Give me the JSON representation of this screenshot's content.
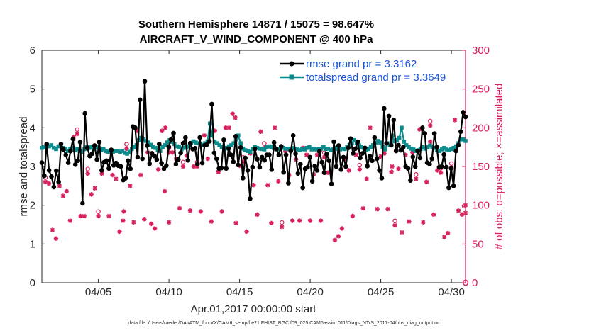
{
  "chart_data": {
    "type": "line",
    "title_line1": "Southern Hemisphere 14871 / 15075 = 98.647%",
    "title_line2": "AIRCRAFT_V_WIND_COMPONENT @ 400 hPa",
    "ylabel_left": "rmse and totalspread",
    "ylabel_right": "# of obs: o=possible; ×=assimilated",
    "xlabel": "Apr.01,2017 00:00:00 start",
    "footer": "data file: /Users/raeder/DAI/ATM_forcXX/CAM6_setup/f.e21.FHIST_BGC.f09_025.CAM6assim.011/Diags_NTrS_2017-04/obs_diag_output.nc",
    "xlim": [
      1,
      31
    ],
    "ylim_left": [
      0,
      6
    ],
    "ylim_right": [
      0,
      300
    ],
    "left_ticks": [
      "0",
      "1",
      "2",
      "3",
      "4",
      "5",
      "6"
    ],
    "right_ticks": [
      "0",
      "50",
      "100",
      "150",
      "200",
      "250",
      "300"
    ],
    "x_tick_days": [
      5,
      10,
      15,
      20,
      25,
      30
    ],
    "x_tick_labels": [
      "04/05",
      "04/10",
      "04/15",
      "04/20",
      "04/25",
      "04/30"
    ],
    "colors": {
      "rmse": "#000000",
      "spread": "#0a8c8c",
      "obs": "#d6205a",
      "legend_text": "#1a55d6",
      "right_axis": "#d6205a"
    },
    "series": [
      {
        "name": "rmse grand pr = 3.3162",
        "values": [
          3.1,
          2.76,
          3.58,
          2.9,
          2.74,
          2.47,
          2.89,
          2.6,
          3.58,
          3.44,
          3.3,
          3.1,
          3.4,
          3.71,
          3.05,
          3.15,
          3.63,
          2.05,
          4.37,
          3.48,
          3.27,
          3.33,
          3.54,
          3.18,
          3.63,
          2.9,
          3.11,
          3.15,
          2.95,
          3.43,
          3.03,
          3.09,
          3.02,
          3.0,
          2.65,
          2.7,
          3.15,
          2.94,
          4.03,
          4.0,
          3.24,
          4.72,
          3.2,
          5.2,
          3.54,
          3.07,
          3.34,
          3.27,
          3.18,
          3.58,
          3.08,
          2.94,
          3.02,
          3.51,
          3.7,
          3.86,
          3.06,
          3.18,
          3.35,
          3.6,
          3.75,
          3.16,
          3.6,
          3.45,
          3.47,
          3.06,
          3.75,
          3.09,
          3.55,
          3.57,
          3.65,
          4.61,
          3.35,
          3.2,
          2.95,
          2.96,
          3.69,
          2.95,
          3.46,
          3.3,
          3.12,
          3.78,
          3.04,
          3.49,
          2.7,
          3.22,
          2.9,
          2.17,
          2.98,
          3.45,
          3.19,
          2.98,
          3.24,
          3.16,
          3.3,
          3.3,
          2.92,
          3.62,
          3.45,
          3.3,
          3.52,
          2.85,
          3.3,
          2.57,
          3.4,
          3.8,
          3.33,
          2.82,
          3.06,
          2.45,
          2.94,
          2.98,
          3.24,
          2.62,
          3.01,
          2.9,
          3.39,
          3.11,
          2.84,
          3.32,
          3.15,
          2.55,
          3.64,
          3.0,
          3.54,
          2.92,
          3.24,
          3.0,
          3.48,
          3.72,
          3.34,
          3.46,
          3.64,
          3.22,
          3.34,
          3.48,
          3.01,
          3.27,
          3.15,
          3.75,
          3.2,
          2.9,
          2.7,
          4.5,
          3.6,
          4.3,
          3.55,
          4.2,
          3.4,
          3.55,
          3.42,
          3.5,
          3.0,
          2.95,
          2.64,
          3.25,
          3.0,
          3.4,
          3.22,
          4.0,
          3.85,
          3.1,
          3.06,
          3.2,
          3.85,
          3.5,
          2.98,
          3.0,
          3.31,
          2.98,
          2.45,
          2.95,
          2.5,
          3.4,
          3.55,
          3.9,
          4.4,
          4.28
        ],
        "color": "#000000"
      },
      {
        "name": "totalspread grand pr = 3.3649",
        "values": [
          3.48,
          3.5,
          3.55,
          3.52,
          3.55,
          3.48,
          3.45,
          3.52,
          3.55,
          3.48,
          3.45,
          3.4,
          3.45,
          3.48,
          3.42,
          3.45,
          3.4,
          3.38,
          3.45,
          3.5,
          3.48,
          3.5,
          3.46,
          3.5,
          3.48,
          3.42,
          3.45,
          3.4,
          3.38,
          3.4,
          3.38,
          3.4,
          3.4,
          3.38,
          3.4,
          3.35,
          3.33,
          3.38,
          3.45,
          3.5,
          3.55,
          3.68,
          3.74,
          3.7,
          3.66,
          3.62,
          3.56,
          3.5,
          3.48,
          3.42,
          3.4,
          3.5,
          3.55,
          3.62,
          3.68,
          3.64,
          3.58,
          3.52,
          3.5,
          3.44,
          3.48,
          3.5,
          3.52,
          3.6,
          3.65,
          3.62,
          3.6,
          3.58,
          3.55,
          3.6,
          3.65,
          4.11,
          3.8,
          3.64,
          3.6,
          3.55,
          3.5,
          3.45,
          3.48,
          3.52,
          3.55,
          3.6,
          3.7,
          3.8,
          3.6,
          3.46,
          3.42,
          3.4,
          3.38,
          3.45,
          3.5,
          3.48,
          3.46,
          3.45,
          3.44,
          3.5,
          3.52,
          3.5,
          3.48,
          3.45,
          3.44,
          3.5,
          3.48,
          3.46,
          3.45,
          3.44,
          3.48,
          3.46,
          3.44,
          3.42,
          3.45,
          3.44,
          3.48,
          3.5,
          3.44,
          3.46,
          3.44,
          3.45,
          3.46,
          3.5,
          3.45,
          3.46,
          3.42,
          3.44,
          3.48,
          3.45,
          3.44,
          3.46,
          3.45,
          3.5,
          3.55,
          3.6,
          3.68,
          3.6,
          3.55,
          3.5,
          3.48,
          3.42,
          3.45,
          3.5,
          3.55,
          3.6,
          3.66,
          3.62,
          3.5,
          3.44,
          3.6,
          3.55,
          3.8,
          3.65,
          3.68,
          3.74,
          4.0,
          3.64,
          3.55,
          3.5,
          3.46,
          3.44,
          3.4,
          3.42,
          3.45,
          3.5,
          3.46,
          3.5,
          3.54,
          3.5,
          3.48,
          3.42,
          3.4,
          3.44,
          3.48,
          3.44,
          3.42,
          3.45,
          3.48,
          3.52,
          3.6,
          3.7,
          3.7,
          3.66
        ],
        "color": "#0a8c8c"
      }
    ],
    "obs_points": [
      [
        1.25,
        130
      ],
      [
        1.5,
        128
      ],
      [
        1.75,
        68
      ],
      [
        2.0,
        57
      ],
      [
        2.25,
        125
      ],
      [
        2.5,
        112
      ],
      [
        2.75,
        118
      ],
      [
        3.0,
        80
      ],
      [
        3.25,
        188
      ],
      [
        3.5,
        192
      ],
      [
        3.75,
        86
      ],
      [
        4.0,
        86
      ],
      [
        4.25,
        141
      ],
      [
        4.5,
        114
      ],
      [
        4.75,
        122
      ],
      [
        5.0,
        86
      ],
      [
        5.25,
        141
      ],
      [
        5.5,
        170
      ],
      [
        5.75,
        86
      ],
      [
        6.0,
        139
      ],
      [
        6.25,
        134
      ],
      [
        6.5,
        66
      ],
      [
        6.75,
        80
      ],
      [
        7.0,
        173
      ],
      [
        7.25,
        125
      ],
      [
        7.5,
        78
      ],
      [
        7.75,
        196
      ],
      [
        8.0,
        139
      ],
      [
        8.25,
        82
      ],
      [
        8.5,
        168
      ],
      [
        8.75,
        76
      ],
      [
        9.0,
        70
      ],
      [
        9.25,
        146
      ],
      [
        9.5,
        196
      ],
      [
        9.75,
        200
      ],
      [
        10.0,
        78
      ],
      [
        10.25,
        168
      ],
      [
        10.5,
        160
      ],
      [
        10.75,
        96
      ],
      [
        11.0,
        150
      ],
      [
        11.25,
        164
      ],
      [
        11.5,
        93
      ],
      [
        11.75,
        150
      ],
      [
        12.0,
        150
      ],
      [
        12.25,
        92
      ],
      [
        12.5,
        190
      ],
      [
        12.75,
        160
      ],
      [
        13.0,
        79
      ],
      [
        13.25,
        196
      ],
      [
        13.5,
        143
      ],
      [
        13.75,
        92
      ],
      [
        14.0,
        200
      ],
      [
        14.25,
        200
      ],
      [
        14.5,
        218
      ],
      [
        14.75,
        77
      ],
      [
        15.0,
        151
      ],
      [
        15.25,
        156
      ],
      [
        15.5,
        66
      ],
      [
        15.75,
        167
      ],
      [
        16.0,
        126
      ],
      [
        16.25,
        88
      ],
      [
        16.5,
        195
      ],
      [
        16.75,
        174
      ],
      [
        17.0,
        126
      ],
      [
        17.25,
        77
      ],
      [
        17.5,
        200
      ],
      [
        17.75,
        131
      ],
      [
        18.0,
        72
      ],
      [
        18.25,
        170
      ],
      [
        18.5,
        139
      ],
      [
        18.75,
        80
      ],
      [
        19.0,
        159
      ],
      [
        19.25,
        80
      ],
      [
        19.5,
        174
      ],
      [
        19.75,
        165
      ],
      [
        20.0,
        80
      ],
      [
        20.25,
        140
      ],
      [
        20.5,
        165
      ],
      [
        20.75,
        80
      ],
      [
        21.0,
        162
      ],
      [
        21.25,
        142
      ],
      [
        21.75,
        55
      ],
      [
        22.0,
        60
      ],
      [
        22.25,
        70
      ],
      [
        22.5,
        160
      ],
      [
        22.75,
        145
      ],
      [
        23.0,
        86
      ],
      [
        23.25,
        165
      ],
      [
        23.5,
        146
      ],
      [
        23.75,
        96
      ],
      [
        24.0,
        134
      ],
      [
        24.25,
        200
      ],
      [
        24.5,
        176
      ],
      [
        24.75,
        95
      ],
      [
        25.0,
        163
      ],
      [
        25.25,
        167
      ],
      [
        25.5,
        95
      ],
      [
        25.75,
        143
      ],
      [
        26.0,
        74
      ],
      [
        26.25,
        147
      ],
      [
        26.5,
        65
      ],
      [
        26.75,
        165
      ],
      [
        27.0,
        79
      ],
      [
        27.25,
        168
      ],
      [
        27.5,
        134
      ],
      [
        27.75,
        198
      ],
      [
        28.0,
        78
      ],
      [
        28.25,
        130
      ],
      [
        28.5,
        203
      ],
      [
        28.75,
        88
      ],
      [
        29.0,
        145
      ],
      [
        29.25,
        142
      ],
      [
        29.5,
        59
      ],
      [
        29.75,
        64
      ],
      [
        30.0,
        148
      ],
      [
        30.25,
        210
      ],
      [
        30.5,
        93
      ],
      [
        30.75,
        88
      ],
      [
        31.0,
        90
      ],
      [
        9.7,
        118
      ],
      [
        10.0,
        168
      ],
      [
        14.7,
        213
      ],
      [
        6.8,
        92
      ],
      [
        25.8,
        150
      ],
      [
        28.5,
        182
      ],
      [
        31.0,
        100
      ]
    ],
    "obs_extra_circles": [
      [
        1.25,
        133
      ],
      [
        3.5,
        195
      ],
      [
        4.25,
        144
      ],
      [
        5.0,
        89
      ],
      [
        7.0,
        176
      ],
      [
        10.0,
        171
      ],
      [
        11.0,
        153
      ],
      [
        12.0,
        153
      ],
      [
        15.25,
        159
      ],
      [
        16.75,
        177
      ],
      [
        18.0,
        75
      ],
      [
        21.0,
        165
      ],
      [
        23.5,
        149
      ],
      [
        25.25,
        170
      ],
      [
        26.0,
        77
      ],
      [
        27.5,
        137
      ],
      [
        28.5,
        206
      ],
      [
        29.25,
        145
      ],
      [
        30.0,
        151
      ]
    ],
    "legend": {
      "rmse": "rmse grand pr = 3.3162",
      "spread": "totalspread grand pr = 3.3649"
    }
  }
}
